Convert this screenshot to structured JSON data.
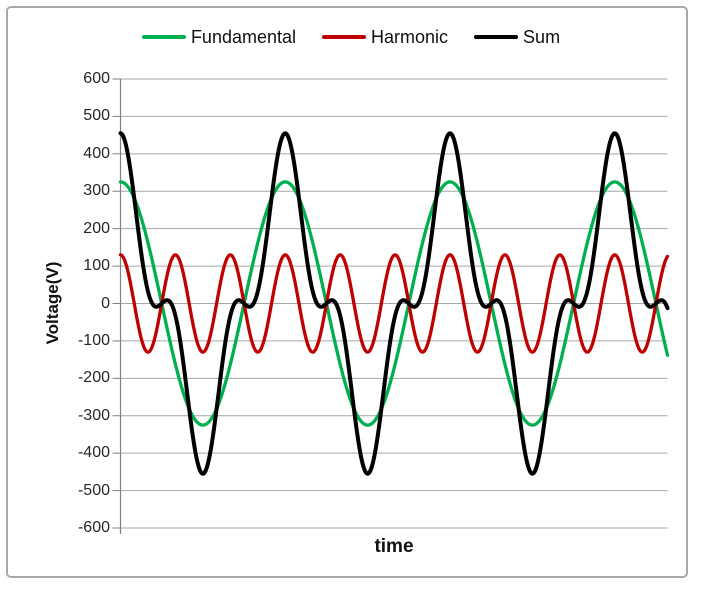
{
  "window": {
    "background_color": "#ffffff",
    "frame_border_color": "#a8a8a8"
  },
  "chart_data": {
    "type": "line",
    "title": "",
    "xlabel": "time",
    "ylabel": "Voltage(V)",
    "ylim": [
      -600,
      600
    ],
    "ytick_step": 100,
    "ytick_labels": [
      "600",
      "500",
      "400",
      "300",
      "200",
      "100",
      "0",
      "-100",
      "-200",
      "-300",
      "-400",
      "-500",
      "-600"
    ],
    "grid": true,
    "gridline_color": "#a6a6a6",
    "axis_line_color": "#808080",
    "legend_position": "top",
    "x_axis_tick_labels_visible": false,
    "periods_shown": 3.32,
    "series": [
      {
        "name": "Fundamental",
        "color": "#00b050",
        "waveform": "cosine",
        "amplitude_v": 325,
        "harmonic_order": 1,
        "phase_deg": 0,
        "stroke_width": 3.3
      },
      {
        "name": "Harmonic",
        "color": "#c00000",
        "waveform": "cosine",
        "amplitude_v": 130,
        "harmonic_order": 3,
        "phase_deg": 0,
        "stroke_width": 3.3
      },
      {
        "name": "Sum",
        "color": "#000000",
        "waveform": "sum_of_components",
        "components": [
          "Fundamental",
          "Harmonic"
        ],
        "peak_v": 455,
        "stroke_width": 4
      }
    ]
  }
}
